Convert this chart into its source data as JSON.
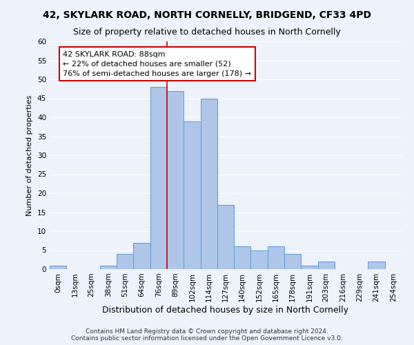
{
  "title": "42, SKYLARK ROAD, NORTH CORNELLY, BRIDGEND, CF33 4PD",
  "subtitle": "Size of property relative to detached houses in North Cornelly",
  "xlabel": "Distribution of detached houses by size in North Cornelly",
  "ylabel": "Number of detached properties",
  "bar_labels": [
    "0sqm",
    "13sqm",
    "25sqm",
    "38sqm",
    "51sqm",
    "64sqm",
    "76sqm",
    "89sqm",
    "102sqm",
    "114sqm",
    "127sqm",
    "140sqm",
    "152sqm",
    "165sqm",
    "178sqm",
    "191sqm",
    "203sqm",
    "216sqm",
    "229sqm",
    "241sqm",
    "254sqm"
  ],
  "bar_values": [
    1,
    0,
    0,
    1,
    4,
    7,
    48,
    47,
    39,
    45,
    17,
    6,
    5,
    6,
    4,
    1,
    2,
    0,
    0,
    2,
    0
  ],
  "bar_color": "#aec6e8",
  "bar_edge_color": "#5b9bd5",
  "ylim": [
    0,
    60
  ],
  "yticks": [
    0,
    5,
    10,
    15,
    20,
    25,
    30,
    35,
    40,
    45,
    50,
    55,
    60
  ],
  "property_bin_index": 6,
  "vline_color": "#cc0000",
  "annotation_title": "42 SKYLARK ROAD: 88sqm",
  "annotation_line1": "← 22% of detached houses are smaller (52)",
  "annotation_line2": "76% of semi-detached houses are larger (178) →",
  "annotation_box_color": "#ffffff",
  "annotation_box_edge_color": "#cc0000",
  "footer_line1": "Contains HM Land Registry data © Crown copyright and database right 2024.",
  "footer_line2": "Contains public sector information licensed under the Open Government Licence v3.0.",
  "background_color": "#eef2fa",
  "grid_color": "#ffffff",
  "title_fontsize": 10,
  "subtitle_fontsize": 9,
  "ylabel_fontsize": 8,
  "xlabel_fontsize": 9,
  "tick_fontsize": 7.5,
  "annotation_fontsize": 8,
  "footer_fontsize": 6.5
}
